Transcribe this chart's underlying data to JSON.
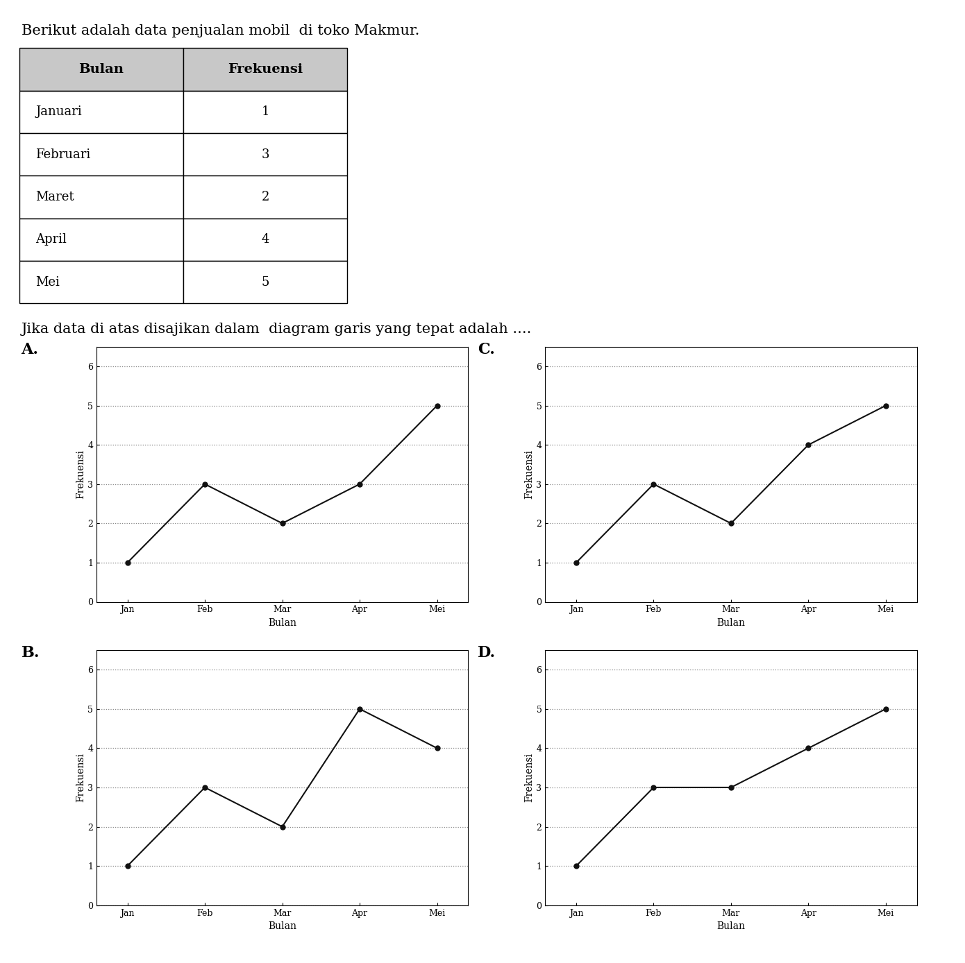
{
  "title_text": "Berikut adalah data penjualan mobil  di toko Makmur.",
  "table_headers": [
    "Bulan",
    "Frekuensi"
  ],
  "table_rows": [
    [
      "Januari",
      "1"
    ],
    [
      "Februari",
      "3"
    ],
    [
      "Maret",
      "2"
    ],
    [
      "April",
      "4"
    ],
    [
      "Mei",
      "5"
    ]
  ],
  "question_text": "Jika data di atas disajikan dalam  diagram garis yang tepat adalah ....",
  "months": [
    "Jan",
    "Feb",
    "Mar",
    "Apr",
    "Mei"
  ],
  "charts": {
    "A": {
      "values": [
        1,
        3,
        2,
        3,
        5
      ],
      "label": "A."
    },
    "B": {
      "values": [
        1,
        3,
        2,
        5,
        4
      ],
      "label": "B."
    },
    "C": {
      "values": [
        1,
        3,
        2,
        4,
        5
      ],
      "label": "C."
    },
    "D": {
      "values": [
        1,
        3,
        3,
        4,
        5
      ],
      "label": "D."
    }
  },
  "ylabel": "Frekuensi",
  "xlabel": "Bulan",
  "ylim": [
    0,
    6.5
  ],
  "yticks": [
    0,
    1,
    2,
    3,
    4,
    5,
    6
  ],
  "background_color": "#ffffff",
  "line_color": "#111111",
  "grid_color": "#888888",
  "title_fontsize": 15,
  "table_header_fontsize": 14,
  "table_data_fontsize": 13,
  "question_fontsize": 15,
  "chart_label_fontsize": 16,
  "tick_fontsize": 9,
  "axis_label_fontsize": 10
}
